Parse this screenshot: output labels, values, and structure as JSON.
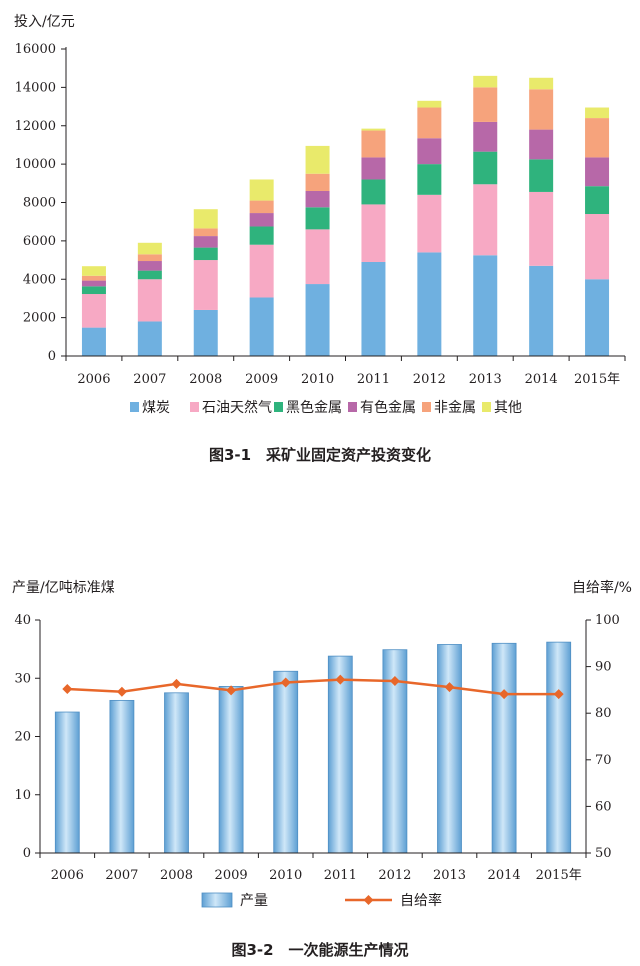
{
  "chart_data": [
    {
      "type": "bar",
      "stacked": true,
      "caption": "图3-1　采矿业固定资产投资变化",
      "ylabel": "投入/亿元",
      "ylim": [
        0,
        16000
      ],
      "yticks": [
        "0",
        "2000",
        "4000",
        "6000",
        "8000",
        "10000",
        "12000",
        "14000",
        "16000"
      ],
      "categories": [
        "2006",
        "2007",
        "2008",
        "2009",
        "2010",
        "2011",
        "2012",
        "2013",
        "2014",
        "2015年"
      ],
      "legend_position": "bottom",
      "series": [
        {
          "name": "煤炭",
          "color": "#6fb0e0",
          "values": [
            1480,
            1800,
            2400,
            3050,
            3750,
            4900,
            5400,
            5250,
            4700,
            4000
          ]
        },
        {
          "name": "石油天然气",
          "color": "#f7a9c4",
          "values": [
            1750,
            2200,
            2600,
            2750,
            2850,
            3000,
            3000,
            3700,
            3850,
            3400
          ]
        },
        {
          "name": "黑色金属",
          "color": "#2fb37d",
          "values": [
            400,
            450,
            650,
            950,
            1150,
            1300,
            1600,
            1700,
            1700,
            1450
          ]
        },
        {
          "name": "有色金属",
          "color": "#b768a8",
          "values": [
            300,
            500,
            600,
            700,
            850,
            1150,
            1350,
            1550,
            1550,
            1500
          ]
        },
        {
          "name": "非金属",
          "color": "#f6a37c",
          "values": [
            250,
            350,
            400,
            650,
            900,
            1400,
            1600,
            1800,
            2100,
            2050
          ]
        },
        {
          "name": "其他",
          "color": "#e9ea6b",
          "values": [
            500,
            600,
            1000,
            1100,
            1450,
            100,
            350,
            600,
            600,
            550
          ]
        }
      ]
    },
    {
      "type": "bar+line",
      "caption": "图3-2　一次能源生产情况",
      "ylabel_left": "产量/亿吨标准煤",
      "ylabel_right": "自给率/%",
      "ylim_left": [
        0,
        40
      ],
      "ylim_right": [
        50,
        100
      ],
      "yticks_left": [
        "0",
        "10",
        "20",
        "30",
        "40"
      ],
      "yticks_right": [
        "50",
        "60",
        "70",
        "80",
        "90",
        "100"
      ],
      "categories": [
        "2006",
        "2007",
        "2008",
        "2009",
        "2010",
        "2011",
        "2012",
        "2013",
        "2014",
        "2015年"
      ],
      "legend_position": "bottom",
      "series": [
        {
          "name": "产量",
          "kind": "bar",
          "axis": "left",
          "color": "#8fc6ea",
          "values": [
            24.2,
            26.2,
            27.5,
            28.6,
            31.2,
            33.8,
            34.9,
            35.8,
            36.0,
            36.2
          ]
        },
        {
          "name": "自给率",
          "kind": "line",
          "axis": "right",
          "color": "#e8672a",
          "values": [
            85.2,
            84.6,
            86.3,
            84.9,
            86.6,
            87.2,
            86.9,
            85.6,
            84.1,
            84.1
          ]
        }
      ]
    }
  ]
}
